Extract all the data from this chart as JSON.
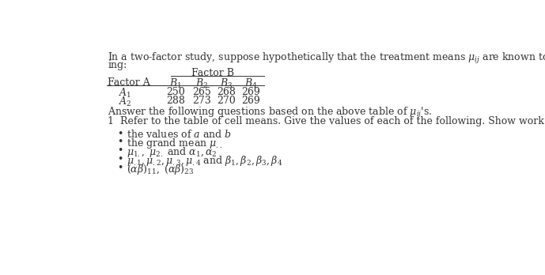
{
  "bg_color": "#ffffff",
  "text_color": "#333333",
  "intro_line1": "In a two-factor study, suppose hypothetically that the treatment means $\\mu_{ij}$ are known to be the follow-",
  "intro_line2": "ing:",
  "factor_b_label": "Factor B",
  "col_headers": [
    "Factor A",
    "$B_1$",
    "$B_2$",
    "$B_3$",
    "$B_4$"
  ],
  "row1_label": "$A_1$",
  "row1_values": [
    "250",
    "265",
    "268",
    "269"
  ],
  "row2_label": "$A_2$",
  "row2_values": [
    "288",
    "273",
    "270",
    "269"
  ],
  "answer_line": "Answer the following questions based on the above table of $\\mu_{ij}$'s.",
  "question_line": "1  Refer to the table of cell means. Give the values of each of the following. Show work.",
  "bullet1": "the values of $a$ and $b$",
  "bullet2": "the grand mean $\\mu_{..}$",
  "bullet3": "$\\mu_{1.},\\ \\mu_{2.}$ and $\\alpha_1, \\alpha_2$",
  "bullet4": "$\\mu_{.1}, \\mu_{.2}, \\mu_{.3}, \\mu_{.4}$ and $\\beta_1, \\beta_2, \\beta_3, \\beta_4$",
  "bullet5": "$(\\alpha\\beta)_{11},\\ (\\alpha\\beta)_{23}$",
  "font_size": 9.0,
  "table_font_size": 9.0
}
